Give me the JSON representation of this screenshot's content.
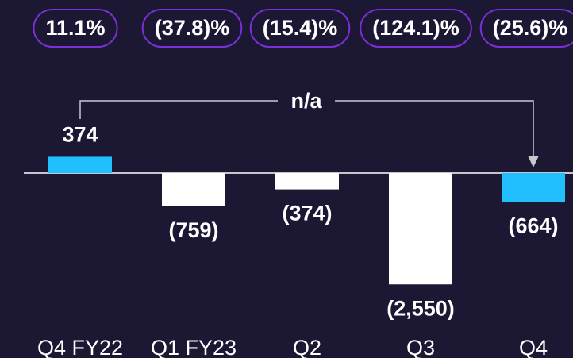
{
  "chart_data": {
    "type": "bar",
    "badges": [
      "11.1%",
      "(37.8)%",
      "(15.4)%",
      "(124.1)%",
      "(25.6)%"
    ],
    "annotation": "n/a",
    "categories": [
      "Q4 FY22",
      "Q1 FY23",
      "Q2",
      "Q3",
      "Q4"
    ],
    "values": [
      374,
      -759,
      -374,
      -2550,
      -664
    ],
    "value_labels": [
      "374",
      "(759)",
      "(374)",
      "(2,550)",
      "(664)"
    ],
    "colors": [
      "#22bfff",
      "#ffffff",
      "#ffffff",
      "#ffffff",
      "#22bfff"
    ],
    "ylim": [
      -2600,
      500
    ]
  }
}
